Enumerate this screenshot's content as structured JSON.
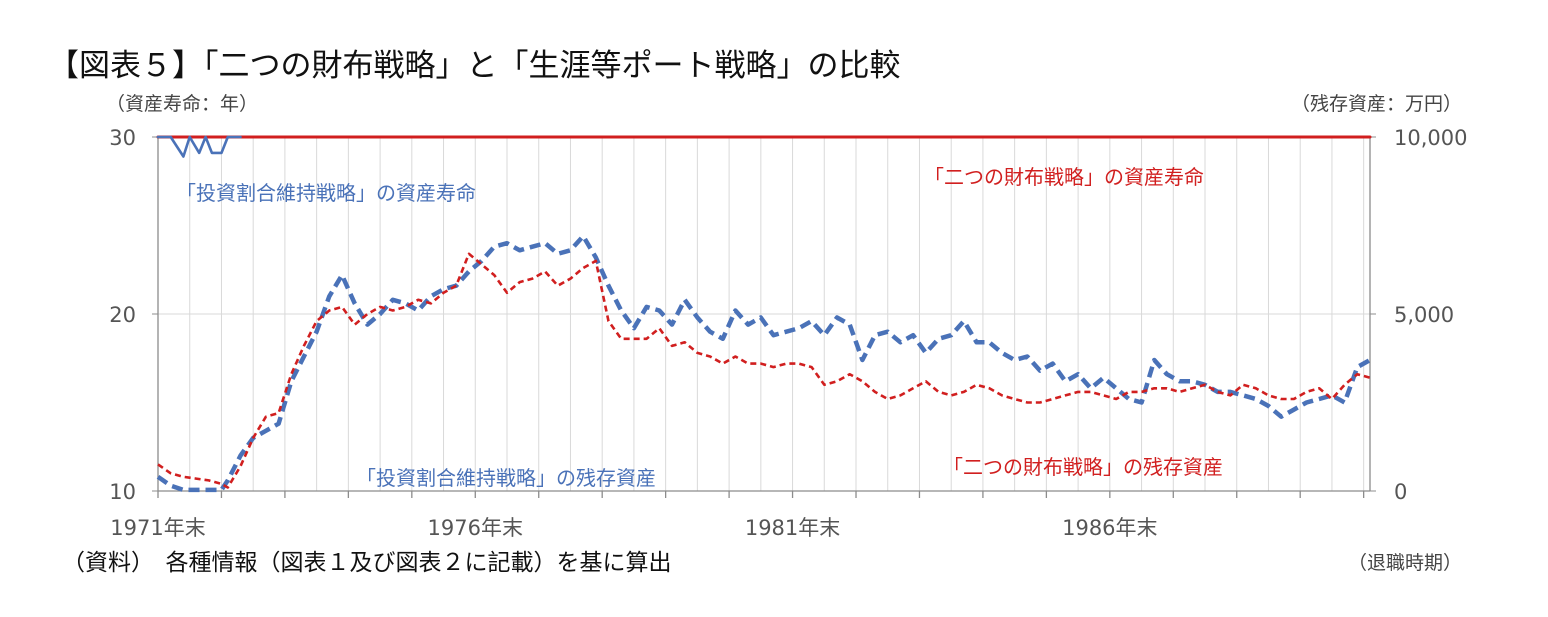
{
  "title": "【図表５】「二つの財布戦略」と「生涯等ポート戦略」の比較",
  "unit_left": "（資産寿命：年）",
  "unit_right": "（残存資産：万円）",
  "source_note": "（資料）　各種情報（図表１及び図表２に記載）を基に算出",
  "x_unit": "（退職時期）",
  "colors": {
    "blue": "#4a72b8",
    "red": "#d11f1f",
    "grid": "#d9d9d9",
    "axis": "#8c8c8c"
  },
  "chart_data": {
    "type": "line",
    "x_range": [
      1971.9,
      1991.0
    ],
    "x_tick_labels": [
      {
        "x": 1971.9,
        "label": "1971年末"
      },
      {
        "x": 1976.9,
        "label": "1976年末"
      },
      {
        "x": 1981.9,
        "label": "1981年末"
      },
      {
        "x": 1986.9,
        "label": "1986年末"
      }
    ],
    "y_left": {
      "range": [
        10,
        30
      ],
      "ticks": [
        "10",
        "20",
        "30"
      ],
      "label": "資産寿命（年）"
    },
    "y_right": {
      "range": [
        0,
        10000
      ],
      "ticks": [
        "0",
        "5,000",
        "10,000"
      ],
      "label": "残存資産（万円）"
    },
    "annotations": {
      "blue_life": "「投資割合維持戦略」の資産寿命",
      "red_life": "「二つの財布戦略」の資産寿命",
      "blue_assets": "「投資割合維持戦略」の残存資産",
      "red_assets": "「二つの財布戦略」の残存資産"
    },
    "series": [
      {
        "name": "「二つの財布戦略」の資産寿命",
        "axis": "left",
        "style": "solid",
        "color": "#d11f1f",
        "x": [
          1971.9,
          1991.0
        ],
        "y": [
          30,
          30
        ]
      },
      {
        "name": "「投資割合維持戦略」の資産寿命",
        "axis": "left",
        "style": "solid",
        "color": "#4a72b8",
        "x": [
          1971.9,
          1972.1,
          1972.3,
          1972.4,
          1972.55,
          1972.65,
          1972.75,
          1972.9,
          1973.0,
          1973.1,
          1973.2
        ],
        "y": [
          30,
          30,
          28.9,
          30,
          29.1,
          30,
          29.1,
          29.1,
          30,
          30,
          30
        ]
      },
      {
        "name": "「投資割合維持戦略」の残存資産",
        "axis": "right",
        "style": "dash",
        "color": "#4a72b8",
        "x": [
          1971.9,
          1972.1,
          1972.3,
          1972.5,
          1972.7,
          1972.9,
          1973.0,
          1973.2,
          1973.4,
          1973.6,
          1973.8,
          1974.0,
          1974.2,
          1974.4,
          1974.6,
          1974.8,
          1975.0,
          1975.2,
          1975.4,
          1975.6,
          1975.8,
          1976.0,
          1976.2,
          1976.4,
          1976.6,
          1976.8,
          1977.0,
          1977.2,
          1977.4,
          1977.6,
          1977.8,
          1978.0,
          1978.2,
          1978.4,
          1978.6,
          1978.8,
          1979.0,
          1979.2,
          1979.4,
          1979.6,
          1979.8,
          1980.0,
          1980.2,
          1980.4,
          1980.6,
          1980.8,
          1981.0,
          1981.2,
          1981.4,
          1981.6,
          1981.8,
          1982.0,
          1982.2,
          1982.4,
          1982.6,
          1982.8,
          1983.0,
          1983.2,
          1983.4,
          1983.6,
          1983.8,
          1984.0,
          1984.2,
          1984.4,
          1984.6,
          1984.8,
          1985.0,
          1985.2,
          1985.4,
          1985.6,
          1985.8,
          1986.0,
          1986.2,
          1986.4,
          1986.6,
          1986.8,
          1987.0,
          1987.2,
          1987.4,
          1987.6,
          1987.8,
          1988.0,
          1988.2,
          1988.4,
          1988.6,
          1988.8,
          1989.0,
          1989.2,
          1989.4,
          1989.6,
          1989.8,
          1990.0,
          1990.2,
          1990.4,
          1990.6,
          1990.8,
          1991.0
        ],
        "y": [
          400,
          150,
          30,
          30,
          30,
          30,
          300,
          1000,
          1500,
          1700,
          1900,
          3100,
          3800,
          4500,
          5500,
          6100,
          5300,
          4700,
          5000,
          5400,
          5300,
          5100,
          5500,
          5700,
          5800,
          6200,
          6500,
          6900,
          7000,
          6800,
          6900,
          7000,
          6700,
          6800,
          7200,
          6600,
          5800,
          5100,
          4600,
          5200,
          5100,
          4700,
          5400,
          4900,
          4500,
          4300,
          5100,
          4700,
          4900,
          4400,
          4500,
          4600,
          4800,
          4400,
          4900,
          4700,
          3700,
          4400,
          4500,
          4200,
          4400,
          3900,
          4300,
          4400,
          4800,
          4200,
          4200,
          3900,
          3700,
          3800,
          3400,
          3600,
          3100,
          3300,
          2900,
          3200,
          2900,
          2600,
          2500,
          3700,
          3300,
          3100,
          3100,
          3000,
          2800,
          2800,
          2700,
          2600,
          2400,
          2100,
          2300,
          2500,
          2600,
          2700,
          2500,
          3500,
          3700
        ]
      },
      {
        "name": "「二つの財布戦略」の残存資産",
        "axis": "right",
        "style": "dash",
        "color": "#d11f1f",
        "x": [
          1971.9,
          1972.1,
          1972.3,
          1972.5,
          1972.7,
          1972.9,
          1973.0,
          1973.2,
          1973.4,
          1973.6,
          1973.8,
          1974.0,
          1974.2,
          1974.4,
          1974.6,
          1974.8,
          1975.0,
          1975.2,
          1975.4,
          1975.6,
          1975.8,
          1976.0,
          1976.2,
          1976.4,
          1976.6,
          1976.8,
          1977.0,
          1977.2,
          1977.4,
          1977.6,
          1977.8,
          1978.0,
          1978.2,
          1978.4,
          1978.6,
          1978.8,
          1979.0,
          1979.2,
          1979.4,
          1979.6,
          1979.8,
          1980.0,
          1980.2,
          1980.4,
          1980.6,
          1980.8,
          1981.0,
          1981.2,
          1981.4,
          1981.6,
          1981.8,
          1982.0,
          1982.2,
          1982.4,
          1982.6,
          1982.8,
          1983.0,
          1983.2,
          1983.4,
          1983.6,
          1983.8,
          1984.0,
          1984.2,
          1984.4,
          1984.6,
          1984.8,
          1985.0,
          1985.2,
          1985.4,
          1985.6,
          1985.8,
          1986.0,
          1986.2,
          1986.4,
          1986.6,
          1986.8,
          1987.0,
          1987.2,
          1987.4,
          1987.6,
          1987.8,
          1988.0,
          1988.2,
          1988.4,
          1988.6,
          1988.8,
          1989.0,
          1989.2,
          1989.4,
          1989.6,
          1989.8,
          1990.0,
          1990.2,
          1990.4,
          1990.6,
          1990.8,
          1991.0
        ],
        "y": [
          750,
          500,
          400,
          350,
          300,
          200,
          100,
          700,
          1500,
          2100,
          2200,
          3300,
          4100,
          4800,
          5100,
          5200,
          4700,
          5000,
          5200,
          5100,
          5200,
          5400,
          5300,
          5600,
          5800,
          6700,
          6400,
          6100,
          5600,
          5900,
          6000,
          6200,
          5800,
          6000,
          6300,
          6500,
          4800,
          4300,
          4300,
          4300,
          4600,
          4100,
          4200,
          3900,
          3800,
          3600,
          3800,
          3600,
          3600,
          3500,
          3600,
          3600,
          3500,
          3000,
          3100,
          3300,
          3100,
          2800,
          2600,
          2700,
          2900,
          3100,
          2800,
          2700,
          2800,
          3000,
          2900,
          2700,
          2600,
          2500,
          2500,
          2600,
          2700,
          2800,
          2800,
          2700,
          2600,
          2800,
          2800,
          2900,
          2900,
          2800,
          2900,
          3000,
          2800,
          2700,
          3000,
          2900,
          2700,
          2600,
          2600,
          2800,
          2900,
          2600,
          3000,
          3300,
          3200
        ]
      }
    ]
  }
}
